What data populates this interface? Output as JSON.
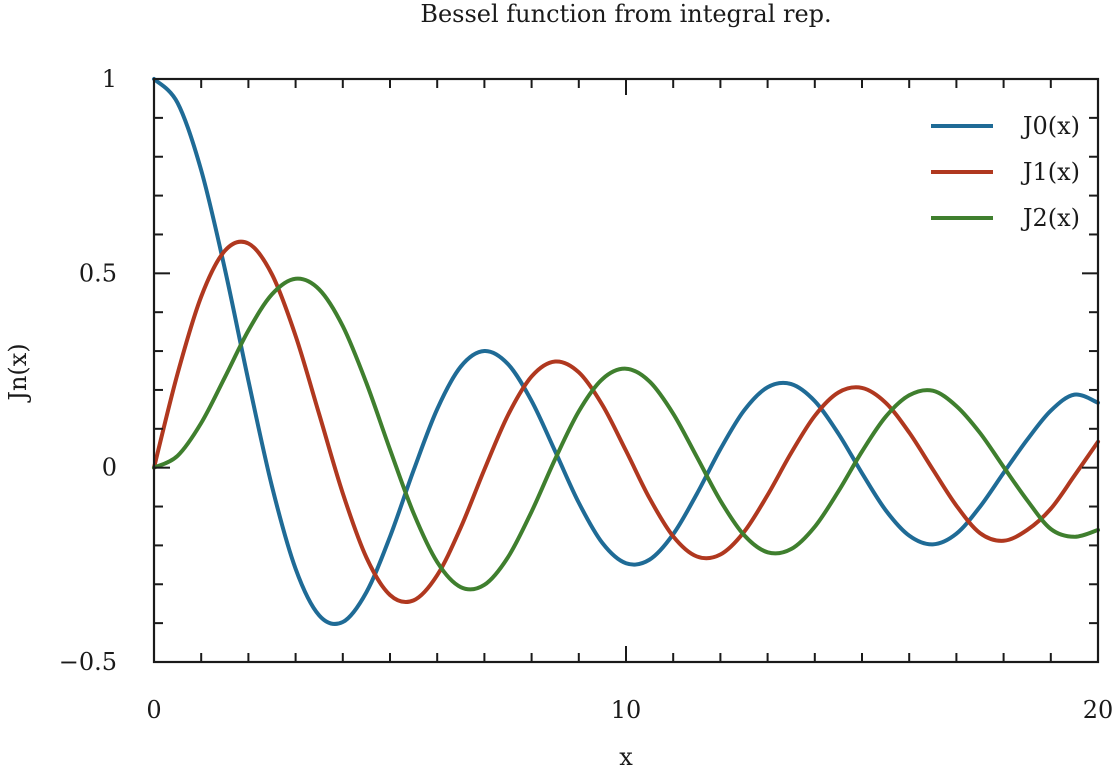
{
  "chart_data": {
    "type": "line",
    "title": "Bessel function from integral rep.",
    "xlabel": "x",
    "ylabel": "Jn(x)",
    "xlim": [
      0,
      20
    ],
    "ylim": [
      -0.5,
      1
    ],
    "x_ticks": [
      {
        "value": 0,
        "label": "0"
      },
      {
        "value": 10,
        "label": "10"
      },
      {
        "value": 20,
        "label": "20"
      }
    ],
    "x_minor_step": 1,
    "y_ticks": [
      {
        "value": -0.5,
        "label": "−0.5"
      },
      {
        "value": 0,
        "label": "0"
      },
      {
        "value": 0.5,
        "label": "0.5"
      },
      {
        "value": 1,
        "label": "1"
      }
    ],
    "y_minor_step": 0.1,
    "grid": false,
    "legend_position": "top-right",
    "x": [
      0,
      0.5,
      1,
      1.5,
      2,
      2.5,
      3,
      3.5,
      4,
      4.5,
      5,
      5.5,
      6,
      6.5,
      7,
      7.5,
      8,
      8.5,
      9,
      9.5,
      10,
      10.5,
      11,
      11.5,
      12,
      12.5,
      13,
      13.5,
      14,
      14.5,
      15,
      15.5,
      16,
      16.5,
      17,
      17.5,
      18,
      18.5,
      19,
      19.5,
      20
    ],
    "series": [
      {
        "name": "J0(x)",
        "color": "#1f6b96",
        "values": [
          1.0,
          0.9385,
          0.7652,
          0.5118,
          0.2239,
          -0.0484,
          -0.2601,
          -0.3801,
          -0.3971,
          -0.3205,
          -0.1776,
          -0.0068,
          0.1506,
          0.2601,
          0.3001,
          0.2663,
          0.1717,
          0.0419,
          -0.0903,
          -0.1939,
          -0.2459,
          -0.2366,
          -0.1712,
          -0.0677,
          0.0477,
          0.1469,
          0.2069,
          0.215,
          0.1711,
          0.0875,
          -0.0142,
          -0.1092,
          -0.1749,
          -0.1973,
          -0.1699,
          -0.1005,
          -0.0134,
          0.0719,
          0.1466,
          0.188,
          0.167
        ]
      },
      {
        "name": "J1(x)",
        "color": "#b0381f",
        "values": [
          0.0,
          0.2423,
          0.4401,
          0.5579,
          0.5767,
          0.4971,
          0.3391,
          0.1374,
          -0.066,
          -0.2311,
          -0.3276,
          -0.3414,
          -0.2767,
          -0.1538,
          -0.0047,
          0.1352,
          0.2346,
          0.2731,
          0.2453,
          0.1613,
          0.0435,
          -0.0789,
          -0.1768,
          -0.2284,
          -0.2234,
          -0.1655,
          -0.0703,
          0.038,
          0.1334,
          0.1934,
          0.2051,
          0.1672,
          0.0904,
          -0.0045,
          -0.0977,
          -0.1684,
          -0.188,
          -0.1602,
          -0.1057,
          -0.0207,
          0.0668
        ]
      },
      {
        "name": "J2(x)",
        "color": "#3f7f2e",
        "values": [
          0.0,
          0.0306,
          0.1149,
          0.2321,
          0.3528,
          0.4461,
          0.4861,
          0.4586,
          0.3641,
          0.2178,
          0.0466,
          -0.1173,
          -0.2429,
          -0.3074,
          -0.3014,
          -0.2303,
          -0.113,
          0.0223,
          0.1448,
          0.2279,
          0.2546,
          0.2216,
          0.139,
          0.0279,
          -0.0849,
          -0.1733,
          -0.2177,
          -0.2094,
          -0.152,
          -0.0609,
          0.0416,
          0.1308,
          0.1862,
          0.198,
          0.1584,
          0.0893,
          0.0019,
          -0.0839,
          -0.1578,
          -0.1779,
          -0.1603
        ]
      }
    ]
  }
}
